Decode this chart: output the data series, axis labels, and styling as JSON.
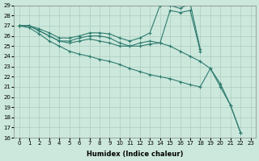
{
  "xlabel": "Humidex (Indice chaleur)",
  "bg_color": "#cce8dd",
  "grid_color": "#aaccbb",
  "line_color": "#2e7b6e",
  "xlim": [
    -0.5,
    23.5
  ],
  "ylim": [
    16,
    29
  ],
  "xticks": [
    0,
    1,
    2,
    3,
    4,
    5,
    6,
    7,
    8,
    9,
    10,
    11,
    12,
    13,
    14,
    15,
    16,
    17,
    18,
    19,
    20,
    21,
    22,
    23
  ],
  "yticks": [
    16,
    17,
    18,
    19,
    20,
    21,
    22,
    23,
    24,
    25,
    26,
    27,
    28,
    29
  ],
  "line1_x": [
    0,
    1,
    2,
    3,
    4,
    5,
    6,
    7,
    8,
    9,
    10,
    11,
    12,
    13,
    14,
    15,
    16,
    17,
    18
  ],
  "line1_y": [
    27,
    27,
    26.7,
    26.3,
    25.8,
    25.8,
    26.0,
    26.3,
    26.3,
    26.2,
    25.8,
    25.5,
    25.8,
    26.3,
    29.0,
    29.0,
    28.7,
    29.2,
    24.7
  ],
  "line2_x": [
    0,
    1,
    2,
    3,
    4,
    5,
    6,
    7,
    8,
    9,
    10,
    11,
    12,
    13,
    14,
    15,
    16,
    17,
    18
  ],
  "line2_y": [
    27,
    27,
    26.5,
    26.0,
    25.5,
    25.5,
    25.8,
    26.0,
    26.0,
    25.8,
    25.3,
    25.0,
    25.3,
    25.5,
    25.3,
    28.5,
    28.3,
    28.5,
    24.5
  ],
  "line3_x": [
    0,
    1,
    2,
    3,
    4,
    5,
    6,
    7,
    8,
    9,
    10,
    11,
    12,
    13,
    14,
    15,
    16,
    17,
    18,
    19,
    20,
    21,
    22
  ],
  "line3_y": [
    27,
    27,
    26.5,
    26.0,
    25.5,
    25.3,
    25.5,
    25.7,
    25.5,
    25.3,
    25.0,
    25.0,
    25.0,
    25.2,
    25.3,
    25.0,
    24.5,
    24.0,
    23.5,
    22.8,
    21.3,
    19.2,
    16.5
  ],
  "line4_x": [
    0,
    1,
    2,
    3,
    4,
    5,
    6,
    7,
    8,
    9,
    10,
    11,
    12,
    13,
    14,
    15,
    16,
    17,
    18,
    19,
    20,
    21,
    22
  ],
  "line4_y": [
    27,
    26.8,
    26.2,
    25.5,
    25.0,
    24.5,
    24.2,
    24.0,
    23.7,
    23.5,
    23.2,
    22.8,
    22.5,
    22.2,
    22.0,
    21.8,
    21.5,
    21.2,
    21.0,
    22.8,
    21.0,
    19.2,
    16.5
  ]
}
